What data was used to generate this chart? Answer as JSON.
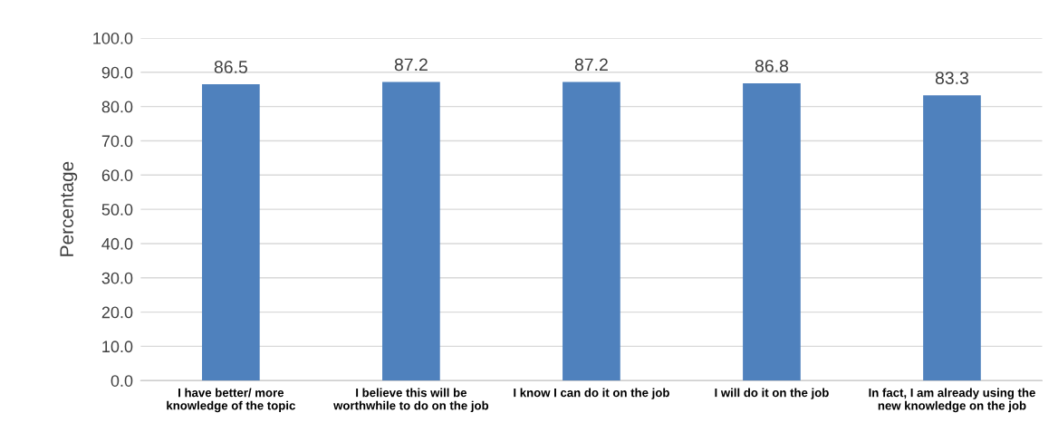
{
  "chart_data": {
    "type": "bar",
    "ylabel": "Percentage",
    "categories": [
      "I have better/ more\nknowledge of the topic",
      "I believe this will be\nworthwhile to do on the job",
      "I know I can do it on the job",
      "I will do it on the job",
      "In fact, I am already using the\nnew knowledge on the job"
    ],
    "values": [
      86.5,
      87.2,
      87.2,
      86.8,
      83.3
    ],
    "color": "#4f81bd",
    "ylim": [
      0,
      100
    ],
    "yticks": [
      {
        "value": 0,
        "label": "0.0"
      },
      {
        "value": 10,
        "label": "10.0"
      },
      {
        "value": 20,
        "label": "20.0"
      },
      {
        "value": 30,
        "label": "30.0"
      },
      {
        "value": 40,
        "label": "40.0"
      },
      {
        "value": 50,
        "label": "50.0"
      },
      {
        "value": 60,
        "label": "60.0"
      },
      {
        "value": 70,
        "label": "70.0"
      },
      {
        "value": 80,
        "label": "80.0"
      },
      {
        "value": 90,
        "label": "90.0"
      },
      {
        "value": 100,
        "label": "100.0"
      }
    ],
    "grid": "y",
    "data_labels": true,
    "legend": false
  }
}
